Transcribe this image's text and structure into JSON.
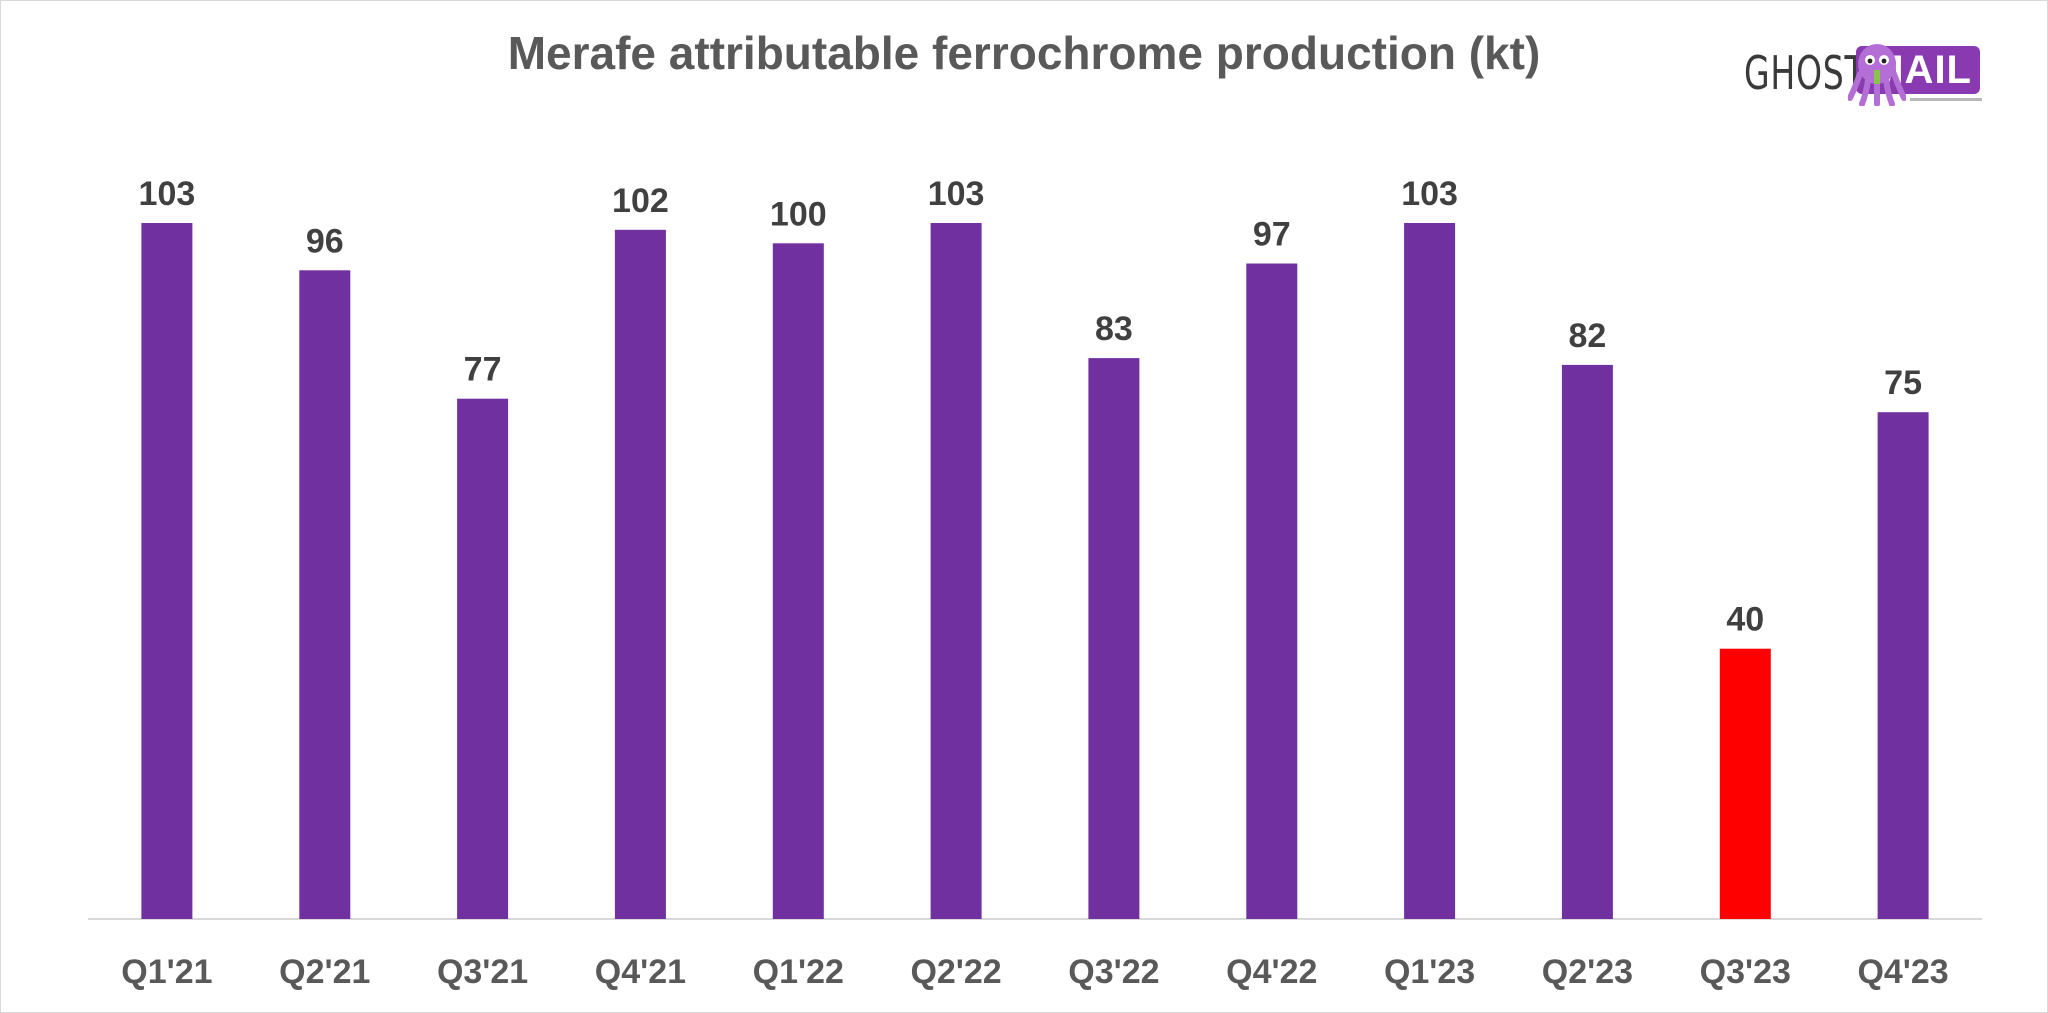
{
  "chart_data": {
    "type": "bar",
    "title": "Merafe attributable ferrochrome production (kt)",
    "xlabel": "",
    "ylabel": "",
    "categories": [
      "Q1'21",
      "Q2'21",
      "Q3'21",
      "Q4'21",
      "Q1'22",
      "Q2'22",
      "Q3'22",
      "Q4'22",
      "Q1'23",
      "Q2'23",
      "Q3'23",
      "Q4'23"
    ],
    "values": [
      103,
      96,
      77,
      102,
      100,
      103,
      83,
      97,
      103,
      82,
      40,
      75
    ],
    "ylim": [
      0,
      103
    ],
    "grid": false,
    "legend": "none",
    "bar_colors": [
      "#7030a0",
      "#7030a0",
      "#7030a0",
      "#7030a0",
      "#7030a0",
      "#7030a0",
      "#7030a0",
      "#7030a0",
      "#7030a0",
      "#7030a0",
      "#ff0000",
      "#7030a0"
    ]
  },
  "colors": {
    "bar": "#7030a0",
    "highlight": "#ff0000",
    "axis": "#d9d9d9",
    "title": "#595959",
    "label": "#404040"
  },
  "logo": {
    "left_text": "GHOST",
    "right_text": "MAIL",
    "icon": "octopus-icon"
  }
}
